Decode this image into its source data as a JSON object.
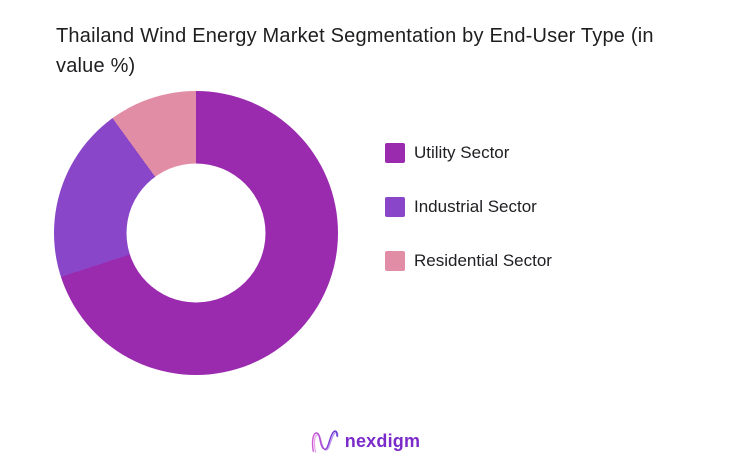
{
  "title": "Thailand Wind Energy Market Segmentation by End-User Type (in value %)",
  "chart_data": {
    "type": "pie",
    "subtype": "donut",
    "title": "Thailand Wind Energy Market Segmentation by End-User Type (in value %)",
    "unit": "%",
    "direction": "clockwise",
    "start_angle_deg": 0,
    "inner_radius_ratio": 0.49,
    "legend_position": "right",
    "data_labels_visible": false,
    "series": [
      {
        "name": "Utility Sector",
        "value": 70,
        "color": "#9A2BAF"
      },
      {
        "name": "Industrial Sector",
        "value": 20,
        "color": "#8A46C9"
      },
      {
        "name": "Residential Sector",
        "value": 10,
        "color": "#E18DA5"
      }
    ]
  },
  "footer": {
    "brand": "nexdigm",
    "brand_color": "#7B2BC9",
    "logo_icon": "nexdigm-wave-n-icon",
    "logo_gradient": [
      "#CF5BD4",
      "#5B2BD6"
    ]
  },
  "page": {
    "background": "#FFFFFF",
    "title_color": "#1E1E20",
    "legend_text_color": "#202024"
  }
}
